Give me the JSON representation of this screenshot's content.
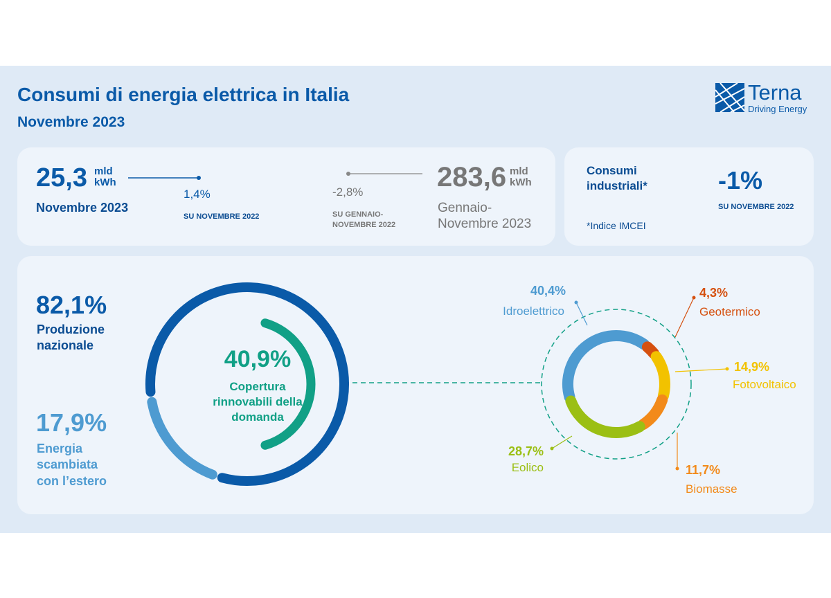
{
  "header": {
    "title": "Consumi di energia elettrica in Italia",
    "subtitle": "Novembre 2023"
  },
  "logo": {
    "name": "Terna",
    "tagline": "Driving Energy"
  },
  "monthly": {
    "value": "25,3",
    "unit": "mld kWh",
    "period": "Novembre 2023",
    "change": "1,4%",
    "change_note": "SU NOVEMBRE 2022"
  },
  "cumulative": {
    "value": "283,6",
    "unit": "mld kWh",
    "period": "Gennaio-Novembre 2023",
    "change": "-2,8%",
    "change_note": "SU GENNAIO-NOVEMBRE 2022"
  },
  "industrial": {
    "label": "Consumi industriali*",
    "change": "-1%",
    "change_note": "SU NOVEMBRE 2022",
    "footnote": "*Indice IMCEI"
  },
  "chart_data": [
    {
      "type": "donut",
      "categories": [
        "Produzione nazionale",
        "Energia scambiata con l’estero"
      ],
      "values": [
        82.1,
        17.9
      ],
      "value_labels": [
        "82,1%",
        "17,9%"
      ],
      "colors": [
        "#0a5aa8",
        "#4e9bd1"
      ]
    },
    {
      "type": "gauge",
      "title": "Copertura rinnovabili della domanda",
      "value": 40.9,
      "value_label": "40,9%",
      "color": "#11a086"
    },
    {
      "type": "donut",
      "categories": [
        "Idroelettrico",
        "Geotermico",
        "Fotovoltaico",
        "Biomasse",
        "Eolico"
      ],
      "values": [
        40.4,
        4.3,
        14.9,
        11.7,
        28.7
      ],
      "value_labels": [
        "40,4%",
        "4,3%",
        "14,9%",
        "11,7%",
        "28,7%"
      ],
      "colors": [
        "#4e9bd1",
        "#d5500f",
        "#f2c200",
        "#f28a1a",
        "#9bbf14"
      ]
    }
  ]
}
